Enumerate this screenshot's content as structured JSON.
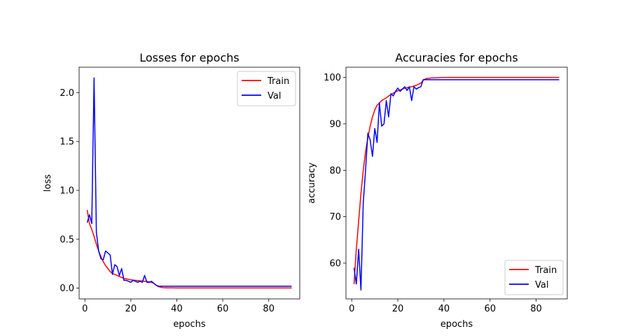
{
  "chart_data": [
    {
      "type": "line",
      "title": "Losses for epochs",
      "xlabel": "epochs",
      "ylabel": "loss",
      "xlim": [
        -2.5,
        93.5
      ],
      "ylim": [
        -0.11,
        2.26
      ],
      "xticks": [
        0,
        20,
        40,
        60,
        80
      ],
      "yticks": [
        0.0,
        0.5,
        1.0,
        1.5,
        2.0
      ],
      "ytick_labels": [
        "0.0",
        "0.5",
        "1.0",
        "1.5",
        "2.0"
      ],
      "legend": "top-right",
      "series": [
        {
          "name": "Train",
          "color": "#ff0000",
          "x": [
            1,
            2,
            3,
            4,
            5,
            6,
            7,
            8,
            9,
            10,
            11,
            12,
            13,
            14,
            15,
            16,
            17,
            18,
            19,
            20,
            22,
            24,
            26,
            28,
            30,
            31,
            32,
            33,
            34,
            35,
            36,
            38,
            40,
            45,
            50,
            60,
            70,
            80,
            90
          ],
          "y": [
            0.8,
            0.66,
            0.6,
            0.53,
            0.45,
            0.38,
            0.32,
            0.27,
            0.23,
            0.2,
            0.17,
            0.15,
            0.14,
            0.13,
            0.12,
            0.11,
            0.1,
            0.095,
            0.09,
            0.085,
            0.08,
            0.075,
            0.07,
            0.065,
            0.05,
            0.03,
            0.015,
            0.01,
            0.005,
            0.004,
            0.003,
            0.003,
            0.002,
            0.002,
            0.002,
            0.002,
            0.002,
            0.002,
            0.002
          ]
        },
        {
          "name": "Val",
          "color": "#0000ff",
          "x": [
            1,
            2,
            3,
            4,
            5,
            6,
            7,
            8,
            9,
            10,
            11,
            12,
            13,
            14,
            15,
            16,
            17,
            18,
            19,
            20,
            21,
            22,
            23,
            24,
            25,
            26,
            27,
            28,
            29,
            30,
            31,
            32,
            33,
            34,
            35,
            36,
            40,
            45,
            50,
            55,
            60,
            65,
            70,
            75,
            80,
            85,
            90
          ],
          "y": [
            0.67,
            0.75,
            0.66,
            2.15,
            0.57,
            0.38,
            0.3,
            0.29,
            0.38,
            0.36,
            0.34,
            0.14,
            0.24,
            0.22,
            0.13,
            0.2,
            0.08,
            0.08,
            0.07,
            0.06,
            0.08,
            0.07,
            0.06,
            0.07,
            0.06,
            0.13,
            0.06,
            0.06,
            0.07,
            0.05,
            0.03,
            0.02,
            0.02,
            0.02,
            0.02,
            0.02,
            0.02,
            0.02,
            0.02,
            0.02,
            0.02,
            0.02,
            0.02,
            0.02,
            0.02,
            0.02,
            0.02
          ]
        }
      ]
    },
    {
      "type": "line",
      "title": "Accuracies for epochs",
      "xlabel": "epochs",
      "ylabel": "accuracy",
      "xlim": [
        -2.5,
        93.5
      ],
      "ylim": [
        52.3,
        102.2
      ],
      "xticks": [
        0,
        20,
        40,
        60,
        80
      ],
      "yticks": [
        60,
        70,
        80,
        90,
        100
      ],
      "ytick_labels": [
        "60",
        "70",
        "80",
        "90",
        "100"
      ],
      "legend": "bottom-right",
      "series": [
        {
          "name": "Train",
          "color": "#ff0000",
          "x": [
            1,
            2,
            3,
            4,
            5,
            6,
            7,
            8,
            9,
            10,
            11,
            12,
            13,
            14,
            15,
            16,
            17,
            18,
            19,
            20,
            22,
            24,
            26,
            28,
            30,
            31,
            32,
            33,
            34,
            35,
            36,
            38,
            40,
            50,
            60,
            70,
            80,
            90
          ],
          "y": [
            55.5,
            63.0,
            69.0,
            75.0,
            80.0,
            84.0,
            87.0,
            89.5,
            91.5,
            93.0,
            94.0,
            94.5,
            95.0,
            95.3,
            95.6,
            96.0,
            96.3,
            96.6,
            96.9,
            97.1,
            97.5,
            97.8,
            98.0,
            98.3,
            98.8,
            99.4,
            99.7,
            99.8,
            99.85,
            99.9,
            99.9,
            99.95,
            100,
            100,
            100,
            100,
            100,
            100
          ]
        },
        {
          "name": "Val",
          "color": "#0000ff",
          "x": [
            1,
            2,
            3,
            4,
            5,
            6,
            7,
            8,
            9,
            10,
            11,
            12,
            13,
            14,
            15,
            16,
            17,
            18,
            19,
            20,
            21,
            22,
            23,
            24,
            25,
            26,
            27,
            28,
            29,
            30,
            31,
            32,
            33,
            34,
            35,
            36,
            40,
            50,
            60,
            70,
            80,
            90
          ],
          "y": [
            59.0,
            55.5,
            63.0,
            54.2,
            73.0,
            80.0,
            88.0,
            86.5,
            83.0,
            89.0,
            86.0,
            94.5,
            89.5,
            90.0,
            95.0,
            91.5,
            96.5,
            96.0,
            97.0,
            97.7,
            97.0,
            97.5,
            98.0,
            97.2,
            98.0,
            95.0,
            98.0,
            97.5,
            97.8,
            98.0,
            99.5,
            99.5,
            99.5,
            99.5,
            99.5,
            99.5,
            99.5,
            99.5,
            99.5,
            99.5,
            99.5,
            99.5
          ]
        }
      ]
    }
  ]
}
